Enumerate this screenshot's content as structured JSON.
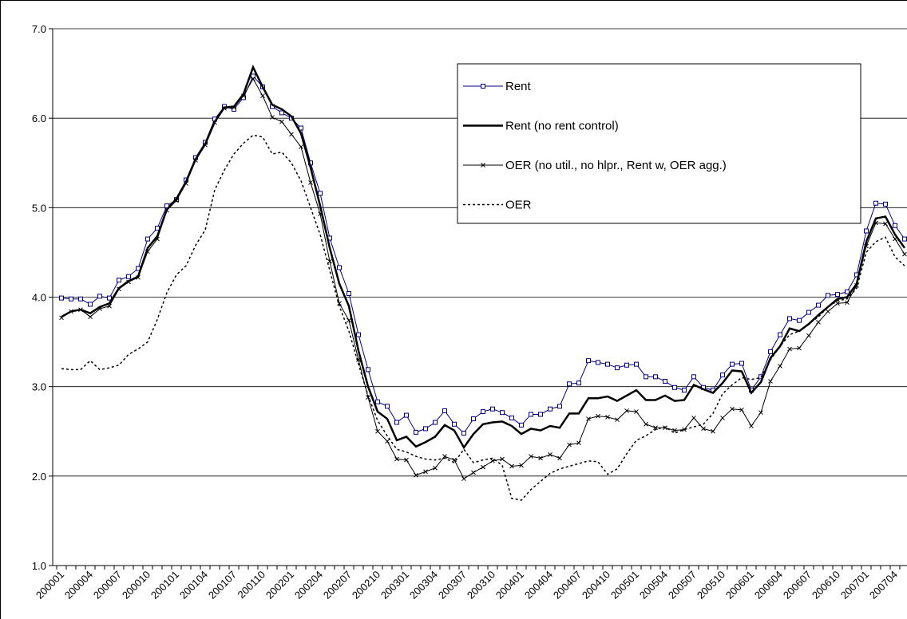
{
  "chart_data": {
    "type": "line",
    "categories": [
      "200001",
      null,
      null,
      "200004",
      null,
      null,
      "200007",
      null,
      null,
      "200010",
      null,
      null,
      "200101",
      null,
      null,
      "200104",
      null,
      null,
      "200107",
      null,
      null,
      "200110",
      null,
      null,
      "200201",
      null,
      null,
      "200204",
      null,
      null,
      "200207",
      null,
      null,
      "200210",
      null,
      null,
      "200301",
      null,
      null,
      "200304",
      null,
      null,
      "200307",
      null,
      null,
      "200310",
      null,
      null,
      "200401",
      null,
      null,
      "200404",
      null,
      null,
      "200407",
      null,
      null,
      "200410",
      null,
      null,
      "200501",
      null,
      null,
      "200504",
      null,
      null,
      "200507",
      null,
      null,
      "200510",
      null,
      null,
      "200601",
      null,
      null,
      "200604",
      null,
      null,
      "200607",
      null,
      null,
      "200610",
      null,
      null,
      "200701",
      null,
      null,
      "200704",
      null
    ],
    "series": [
      {
        "name": "Rent",
        "color": "#000080",
        "marker": "square",
        "dash": "solid",
        "linewidth": 1,
        "values": [
          3.99,
          3.98,
          3.98,
          3.92,
          4.01,
          3.99,
          4.19,
          4.23,
          4.32,
          4.65,
          4.77,
          5.02,
          5.09,
          5.31,
          5.56,
          5.73,
          5.99,
          6.13,
          6.1,
          6.23,
          6.47,
          6.35,
          6.13,
          6.06,
          6.0,
          5.89,
          5.5,
          5.16,
          4.66,
          4.33,
          4.04,
          3.58,
          3.19,
          2.83,
          2.78,
          2.6,
          2.68,
          2.49,
          2.53,
          2.6,
          2.73,
          2.58,
          2.48,
          2.64,
          2.72,
          2.75,
          2.71,
          2.65,
          2.57,
          2.69,
          2.69,
          2.75,
          2.78,
          3.03,
          3.04,
          3.29,
          3.27,
          3.25,
          3.21,
          3.24,
          3.25,
          3.11,
          3.11,
          3.06,
          2.99,
          2.96,
          3.11,
          2.99,
          2.96,
          3.13,
          3.25,
          3.26,
          2.96,
          3.11,
          3.39,
          3.58,
          3.76,
          3.74,
          3.83,
          3.91,
          4.02,
          4.03,
          4.06,
          4.25,
          4.74,
          5.05,
          5.04,
          4.8,
          4.65
        ]
      },
      {
        "name": "Rent (no rent control)",
        "color": "#000000",
        "marker": "none",
        "dash": "solid",
        "linewidth": 2.5,
        "values": [
          3.78,
          3.84,
          3.86,
          3.82,
          3.89,
          3.93,
          4.1,
          4.18,
          4.23,
          4.55,
          4.68,
          4.98,
          5.1,
          5.29,
          5.54,
          5.71,
          5.96,
          6.12,
          6.13,
          6.27,
          6.57,
          6.35,
          6.15,
          6.1,
          6.02,
          5.83,
          5.45,
          5.02,
          4.55,
          4.15,
          3.9,
          3.4,
          3.0,
          2.72,
          2.64,
          2.4,
          2.44,
          2.33,
          2.38,
          2.44,
          2.57,
          2.51,
          2.32,
          2.47,
          2.58,
          2.6,
          2.61,
          2.56,
          2.47,
          2.53,
          2.51,
          2.56,
          2.54,
          2.7,
          2.7,
          2.87,
          2.87,
          2.89,
          2.84,
          2.9,
          2.96,
          2.85,
          2.85,
          2.9,
          2.84,
          2.85,
          3.02,
          2.97,
          2.93,
          3.04,
          3.18,
          3.17,
          2.93,
          3.05,
          3.32,
          3.45,
          3.65,
          3.62,
          3.7,
          3.8,
          3.89,
          3.98,
          4.0,
          4.15,
          4.62,
          4.88,
          4.9,
          4.7,
          4.55
        ]
      },
      {
        "name": "OER (no util., no hlpr., Rent w, OER agg.)",
        "color": "#000000",
        "marker": "x",
        "dash": "solid",
        "linewidth": 1,
        "values": [
          3.77,
          3.84,
          3.86,
          3.78,
          3.87,
          3.9,
          4.09,
          4.17,
          4.22,
          4.51,
          4.65,
          4.97,
          5.08,
          5.27,
          5.53,
          5.7,
          5.95,
          6.11,
          6.12,
          6.25,
          6.44,
          6.25,
          6.01,
          5.96,
          5.82,
          5.68,
          5.28,
          4.93,
          4.4,
          3.93,
          3.74,
          3.3,
          2.88,
          2.5,
          2.39,
          2.19,
          2.18,
          2.01,
          2.05,
          2.09,
          2.22,
          2.18,
          1.97,
          2.04,
          2.1,
          2.17,
          2.19,
          2.11,
          2.12,
          2.22,
          2.2,
          2.24,
          2.2,
          2.35,
          2.37,
          2.64,
          2.67,
          2.66,
          2.63,
          2.73,
          2.72,
          2.58,
          2.54,
          2.54,
          2.51,
          2.52,
          2.65,
          2.53,
          2.5,
          2.65,
          2.75,
          2.74,
          2.56,
          2.71,
          3.06,
          3.23,
          3.42,
          3.43,
          3.57,
          3.72,
          3.84,
          3.93,
          3.94,
          4.13,
          4.57,
          4.83,
          4.82,
          4.65,
          4.48
        ]
      },
      {
        "name": "OER",
        "color": "#000000",
        "marker": "none",
        "dash": "dotted",
        "linewidth": 1.5,
        "values": [
          3.2,
          3.19,
          3.19,
          3.29,
          3.19,
          3.21,
          3.24,
          3.36,
          3.42,
          3.5,
          3.75,
          4.05,
          4.25,
          4.35,
          4.58,
          4.75,
          5.2,
          5.42,
          5.6,
          5.72,
          5.81,
          5.79,
          5.6,
          5.62,
          5.5,
          5.3,
          5.0,
          4.7,
          4.3,
          3.9,
          3.62,
          3.25,
          2.9,
          2.62,
          2.45,
          2.3,
          2.27,
          2.22,
          2.19,
          2.18,
          2.2,
          2.15,
          2.3,
          2.15,
          2.18,
          2.2,
          2.12,
          1.75,
          1.73,
          1.85,
          1.94,
          2.03,
          2.08,
          2.11,
          2.14,
          2.17,
          2.16,
          2.02,
          2.08,
          2.25,
          2.4,
          2.45,
          2.52,
          2.55,
          2.48,
          2.52,
          2.55,
          2.58,
          2.7,
          2.92,
          3.02,
          3.1,
          3.08,
          3.1,
          3.3,
          3.45,
          3.58,
          3.62,
          3.7,
          3.78,
          3.89,
          3.96,
          3.98,
          4.1,
          4.5,
          4.62,
          4.67,
          4.45,
          4.35
        ]
      }
    ],
    "ylim": [
      1.0,
      7.0
    ],
    "yticks": [
      {
        "value": 1,
        "label": "1.0"
      },
      {
        "value": 2,
        "label": "2.0"
      },
      {
        "value": 3,
        "label": "3.0"
      },
      {
        "value": 4,
        "label": "4.0"
      },
      {
        "value": 5,
        "label": "5.0"
      },
      {
        "value": 6,
        "label": "6.0"
      },
      {
        "value": 7,
        "label": "7.0"
      }
    ],
    "grid": true,
    "legend": "upper-right"
  }
}
